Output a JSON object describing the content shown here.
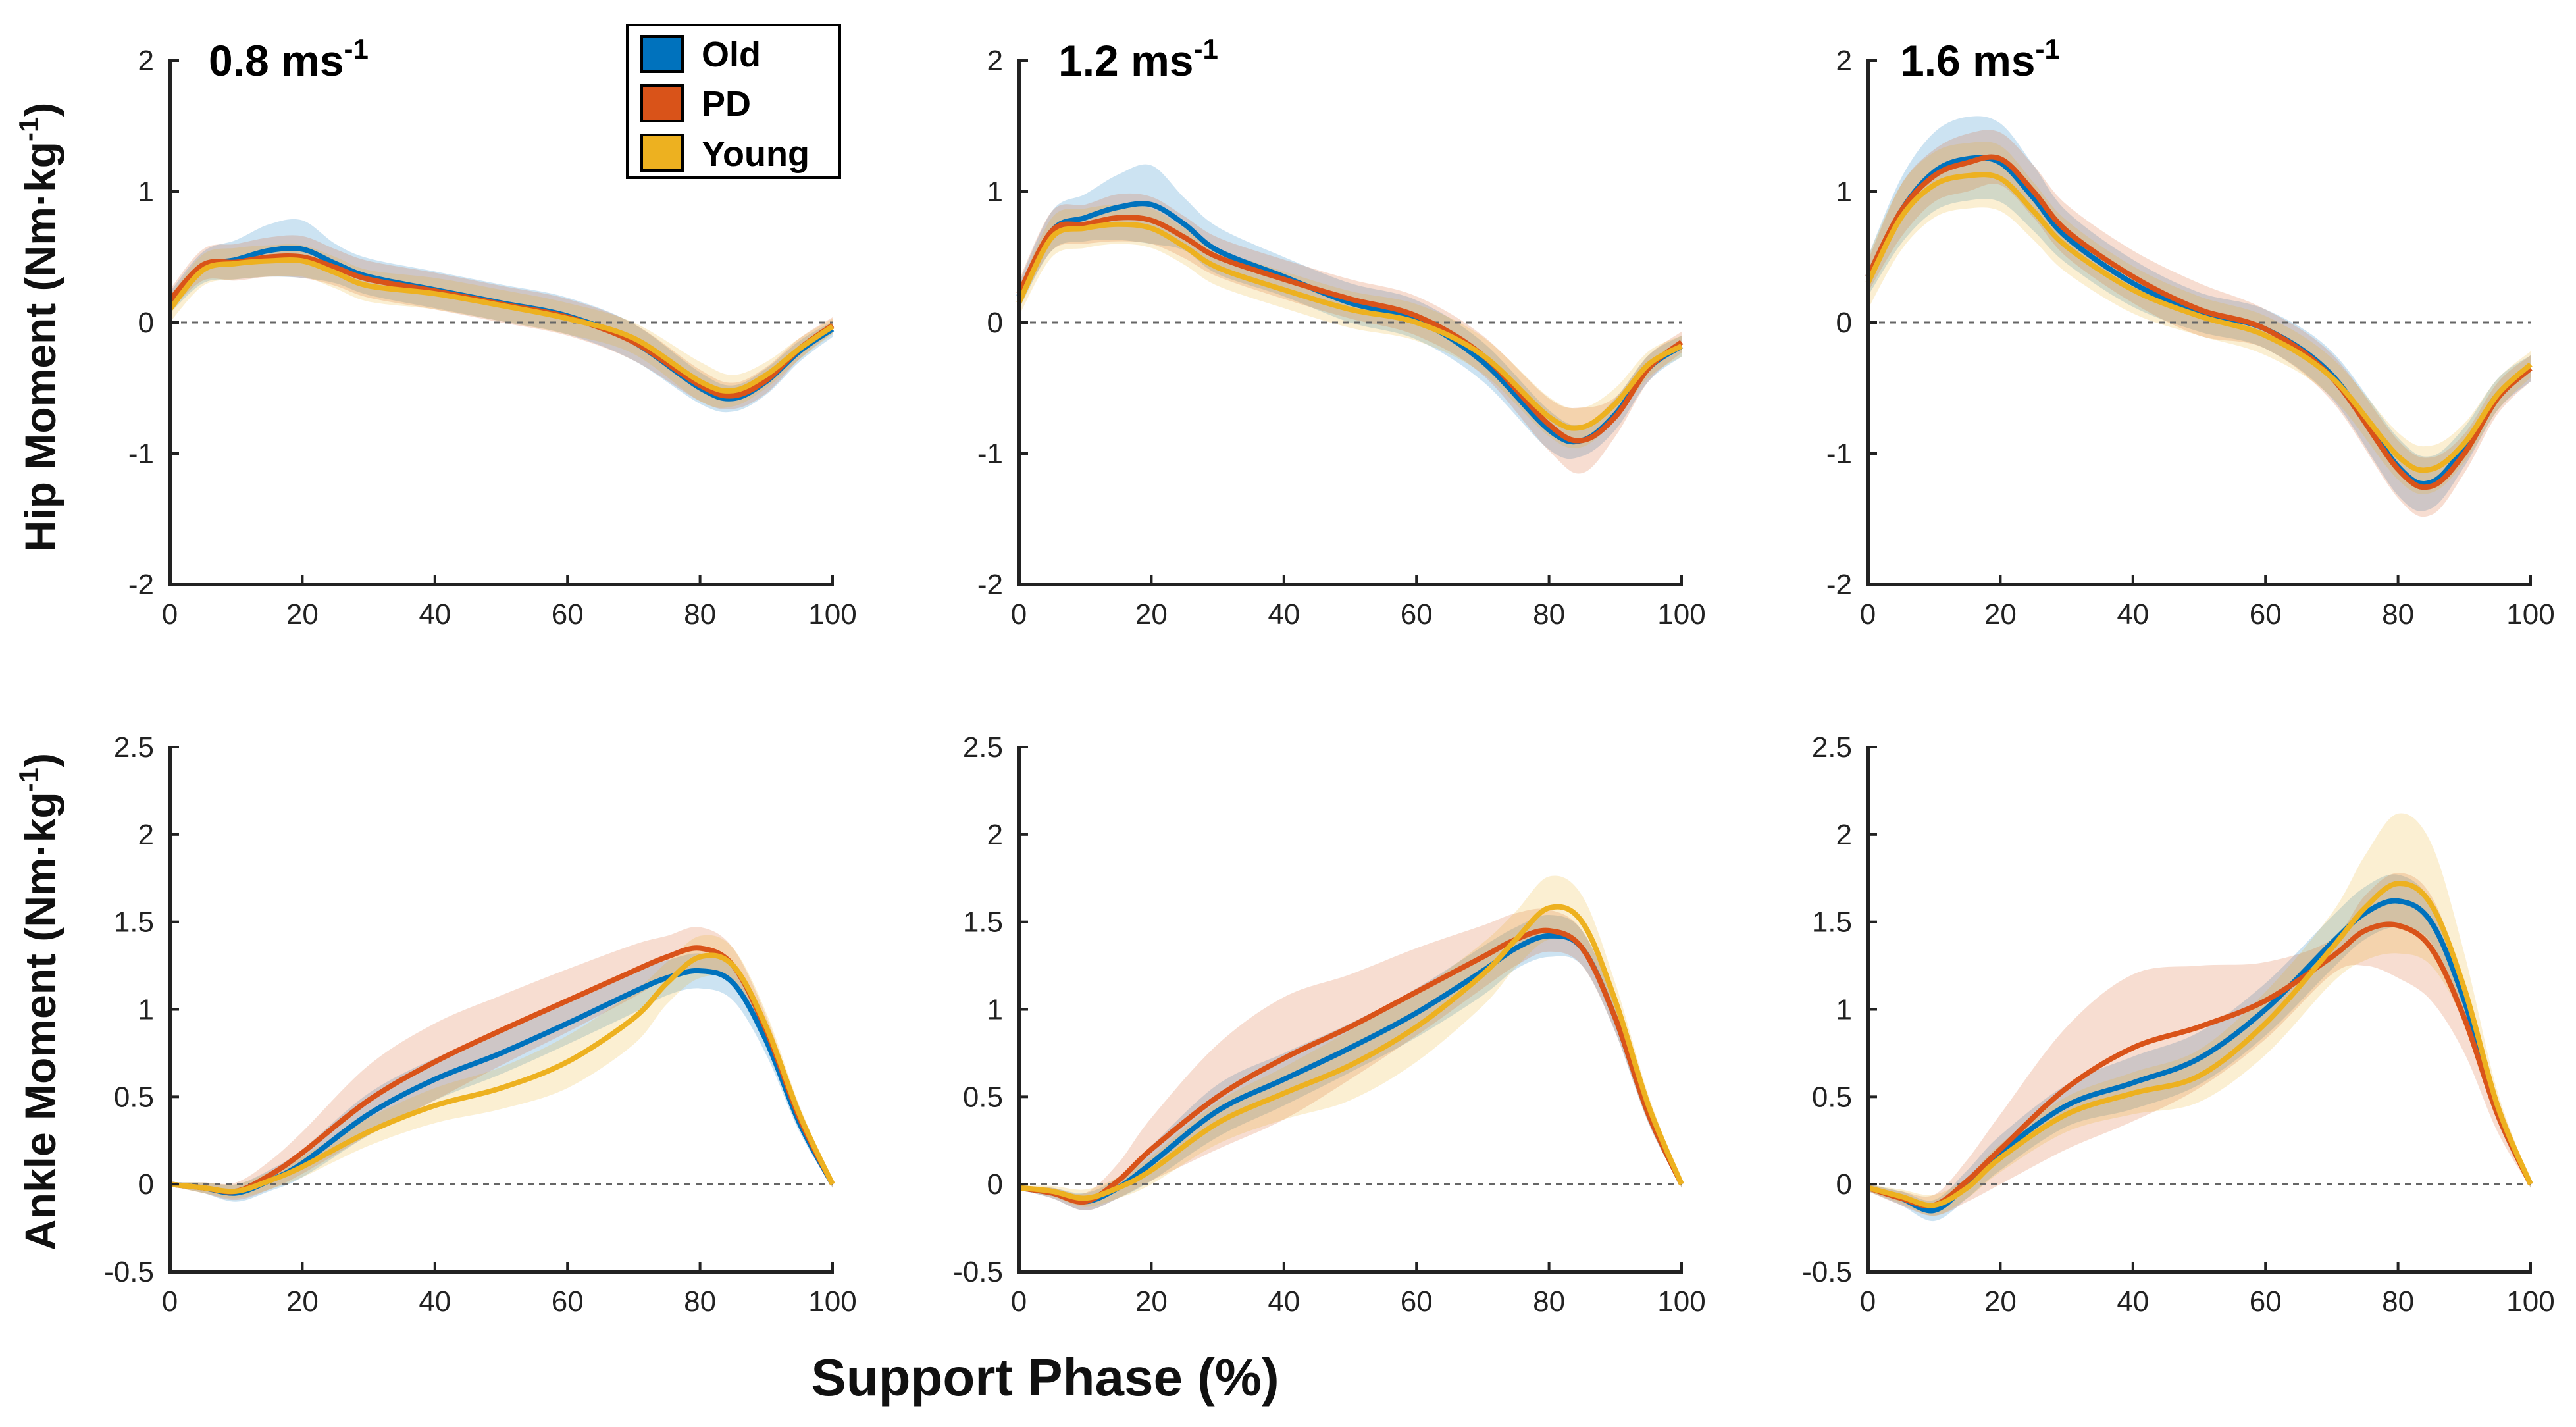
{
  "figure": {
    "xlabel": "Support Phase (%)",
    "speed_unit": "ms",
    "speed_exp": "-1",
    "speeds": [
      "0.8",
      "1.2",
      "1.6"
    ]
  },
  "legend": {
    "position": "top, first panel",
    "entries": [
      {
        "name": "Old",
        "color": "#0072BD"
      },
      {
        "name": "PD",
        "color": "#D95319"
      },
      {
        "name": "Young",
        "color": "#EDB120"
      }
    ]
  },
  "ylabels": {
    "hip": {
      "main": "Hip Moment (Nm·kg",
      "exp": "-1",
      "close": ")"
    },
    "ankle": {
      "main": "Ankle Moment (Nm·kg",
      "exp": "-1",
      "close": ")"
    }
  },
  "chart_data": [
    {
      "type": "line",
      "row": "hip",
      "speed": "0.8 ms-1",
      "x": [
        0,
        5,
        10,
        15,
        20,
        25,
        30,
        40,
        50,
        60,
        70,
        80,
        85,
        90,
        95,
        100
      ],
      "xlim": [
        0,
        100
      ],
      "ylim": [
        -2,
        2
      ],
      "xticks": [
        "0",
        "20",
        "40",
        "60",
        "80",
        "100"
      ],
      "yticks": [
        "-2",
        "-1",
        "0",
        "1",
        "2"
      ],
      "zero_line": true,
      "series": [
        {
          "name": "Old",
          "values": [
            0.15,
            0.42,
            0.48,
            0.55,
            0.56,
            0.45,
            0.35,
            0.25,
            0.15,
            0.05,
            -0.15,
            -0.5,
            -0.58,
            -0.45,
            -0.22,
            -0.05
          ],
          "sd": [
            0.08,
            0.12,
            0.15,
            0.2,
            0.22,
            0.15,
            0.14,
            0.14,
            0.14,
            0.14,
            0.14,
            0.12,
            0.1,
            0.1,
            0.08,
            0.06
          ]
        },
        {
          "name": "PD",
          "values": [
            0.17,
            0.44,
            0.46,
            0.5,
            0.5,
            0.42,
            0.33,
            0.24,
            0.14,
            0.04,
            -0.15,
            -0.48,
            -0.56,
            -0.44,
            -0.2,
            -0.02
          ],
          "sd": [
            0.08,
            0.12,
            0.14,
            0.15,
            0.16,
            0.14,
            0.14,
            0.14,
            0.14,
            0.14,
            0.14,
            0.12,
            0.1,
            0.1,
            0.08,
            0.06
          ]
        },
        {
          "name": "Young",
          "values": [
            0.1,
            0.4,
            0.45,
            0.47,
            0.47,
            0.38,
            0.28,
            0.22,
            0.13,
            0.03,
            -0.12,
            -0.45,
            -0.52,
            -0.4,
            -0.2,
            -0.03
          ],
          "sd": [
            0.1,
            0.12,
            0.12,
            0.12,
            0.12,
            0.12,
            0.12,
            0.12,
            0.12,
            0.12,
            0.12,
            0.15,
            0.12,
            0.1,
            0.08,
            0.06
          ]
        }
      ]
    },
    {
      "type": "line",
      "row": "hip",
      "speed": "1.2 ms-1",
      "x": [
        0,
        5,
        10,
        15,
        20,
        25,
        30,
        40,
        50,
        60,
        70,
        80,
        85,
        90,
        95,
        100
      ],
      "xlim": [
        0,
        100
      ],
      "ylim": [
        -2,
        2
      ],
      "xticks": [
        "0",
        "20",
        "40",
        "60",
        "80",
        "100"
      ],
      "yticks": [
        "-2",
        "-1",
        "0",
        "1",
        "2"
      ],
      "zero_line": true,
      "series": [
        {
          "name": "Old",
          "values": [
            0.2,
            0.7,
            0.8,
            0.88,
            0.9,
            0.75,
            0.55,
            0.35,
            0.15,
            0.02,
            -0.3,
            -0.82,
            -0.9,
            -0.7,
            -0.35,
            -0.18
          ],
          "sd": [
            0.1,
            0.15,
            0.18,
            0.25,
            0.3,
            0.2,
            0.18,
            0.15,
            0.15,
            0.15,
            0.15,
            0.15,
            0.12,
            0.12,
            0.1,
            0.08
          ]
        },
        {
          "name": "PD",
          "values": [
            0.22,
            0.7,
            0.75,
            0.8,
            0.78,
            0.65,
            0.5,
            0.33,
            0.18,
            0.05,
            -0.25,
            -0.78,
            -0.9,
            -0.72,
            -0.35,
            -0.15
          ],
          "sd": [
            0.1,
            0.15,
            0.15,
            0.18,
            0.18,
            0.16,
            0.15,
            0.15,
            0.15,
            0.15,
            0.15,
            0.2,
            0.25,
            0.15,
            0.1,
            0.08
          ]
        },
        {
          "name": "Young",
          "values": [
            0.15,
            0.65,
            0.72,
            0.75,
            0.72,
            0.58,
            0.42,
            0.25,
            0.1,
            0.0,
            -0.25,
            -0.72,
            -0.8,
            -0.62,
            -0.32,
            -0.18
          ],
          "sd": [
            0.1,
            0.15,
            0.15,
            0.15,
            0.15,
            0.14,
            0.14,
            0.14,
            0.14,
            0.14,
            0.14,
            0.15,
            0.15,
            0.12,
            0.1,
            0.08
          ]
        }
      ]
    },
    {
      "type": "line",
      "row": "hip",
      "speed": "1.6 ms-1",
      "x": [
        0,
        5,
        10,
        15,
        20,
        25,
        30,
        40,
        50,
        60,
        70,
        80,
        85,
        90,
        95,
        100
      ],
      "xlim": [
        0,
        100
      ],
      "ylim": [
        -2,
        2
      ],
      "xticks": [
        "0",
        "20",
        "40",
        "60",
        "80",
        "100"
      ],
      "yticks": [
        "-2",
        "-1",
        "0",
        "1",
        "2"
      ],
      "zero_line": true,
      "series": [
        {
          "name": "Old",
          "values": [
            0.35,
            0.85,
            1.15,
            1.25,
            1.22,
            0.95,
            0.65,
            0.3,
            0.08,
            -0.05,
            -0.4,
            -1.1,
            -1.22,
            -0.95,
            -0.55,
            -0.35
          ],
          "sd": [
            0.15,
            0.25,
            0.3,
            0.32,
            0.3,
            0.25,
            0.2,
            0.18,
            0.15,
            0.15,
            0.18,
            0.22,
            0.2,
            0.15,
            0.12,
            0.1
          ]
        },
        {
          "name": "PD",
          "values": [
            0.35,
            0.85,
            1.12,
            1.22,
            1.25,
            1.0,
            0.7,
            0.35,
            0.1,
            -0.05,
            -0.42,
            -1.12,
            -1.25,
            -1.0,
            -0.58,
            -0.35
          ],
          "sd": [
            0.12,
            0.2,
            0.2,
            0.22,
            0.2,
            0.2,
            0.2,
            0.2,
            0.2,
            0.15,
            0.18,
            0.22,
            0.22,
            0.15,
            0.12,
            0.1
          ]
        },
        {
          "name": "Young",
          "values": [
            0.3,
            0.8,
            1.05,
            1.12,
            1.1,
            0.85,
            0.58,
            0.25,
            0.05,
            -0.1,
            -0.42,
            -1.02,
            -1.12,
            -0.92,
            -0.55,
            -0.32
          ],
          "sd": [
            0.2,
            0.25,
            0.25,
            0.25,
            0.25,
            0.22,
            0.2,
            0.18,
            0.15,
            0.15,
            0.15,
            0.18,
            0.18,
            0.15,
            0.12,
            0.1
          ]
        }
      ]
    },
    {
      "type": "line",
      "row": "ankle",
      "speed": "0.8 ms-1",
      "x": [
        0,
        5,
        10,
        15,
        20,
        30,
        40,
        50,
        60,
        70,
        75,
        80,
        85,
        90,
        95,
        100
      ],
      "xlim": [
        0,
        100
      ],
      "ylim": [
        -0.5,
        2.5
      ],
      "xticks": [
        "0",
        "20",
        "40",
        "60",
        "80",
        "100"
      ],
      "yticks": [
        "-0.5",
        "0",
        "0.5",
        "1",
        "1.5",
        "2",
        "2.5"
      ],
      "zero_line": true,
      "series": [
        {
          "name": "Old",
          "values": [
            0.0,
            -0.02,
            -0.05,
            0.02,
            0.12,
            0.4,
            0.6,
            0.75,
            0.92,
            1.1,
            1.18,
            1.22,
            1.15,
            0.82,
            0.35,
            0.0
          ],
          "sd": [
            0.01,
            0.03,
            0.05,
            0.06,
            0.08,
            0.12,
            0.12,
            0.12,
            0.12,
            0.12,
            0.1,
            0.1,
            0.1,
            0.08,
            0.05,
            0.02
          ]
        },
        {
          "name": "PD",
          "values": [
            0.0,
            -0.02,
            -0.04,
            0.05,
            0.18,
            0.48,
            0.7,
            0.88,
            1.05,
            1.22,
            1.3,
            1.35,
            1.25,
            0.88,
            0.38,
            0.0
          ],
          "sd": [
            0.01,
            0.03,
            0.05,
            0.08,
            0.12,
            0.2,
            0.22,
            0.2,
            0.18,
            0.15,
            0.12,
            0.12,
            0.1,
            0.08,
            0.05,
            0.02
          ]
        },
        {
          "name": "Young",
          "values": [
            0.0,
            -0.02,
            -0.04,
            0.02,
            0.1,
            0.3,
            0.45,
            0.55,
            0.7,
            0.95,
            1.15,
            1.3,
            1.25,
            0.9,
            0.4,
            0.0
          ],
          "sd": [
            0.01,
            0.03,
            0.04,
            0.05,
            0.06,
            0.08,
            0.1,
            0.12,
            0.15,
            0.15,
            0.12,
            0.12,
            0.1,
            0.08,
            0.05,
            0.02
          ]
        }
      ]
    },
    {
      "type": "line",
      "row": "ankle",
      "speed": "1.2 ms-1",
      "x": [
        0,
        5,
        10,
        15,
        20,
        30,
        40,
        50,
        60,
        70,
        75,
        80,
        85,
        90,
        95,
        100
      ],
      "xlim": [
        0,
        100
      ],
      "ylim": [
        -0.5,
        2.5
      ],
      "xticks": [
        "0",
        "20",
        "40",
        "60",
        "80",
        "100"
      ],
      "yticks": [
        "-0.5",
        "0",
        "0.5",
        "1",
        "1.5",
        "2",
        "2.5"
      ],
      "zero_line": true,
      "series": [
        {
          "name": "Old",
          "values": [
            -0.02,
            -0.05,
            -0.1,
            -0.02,
            0.12,
            0.42,
            0.6,
            0.78,
            0.98,
            1.22,
            1.35,
            1.42,
            1.35,
            0.95,
            0.4,
            0.0
          ],
          "sd": [
            0.01,
            0.03,
            0.05,
            0.06,
            0.1,
            0.15,
            0.15,
            0.14,
            0.14,
            0.14,
            0.12,
            0.12,
            0.1,
            0.08,
            0.05,
            0.02
          ]
        },
        {
          "name": "PD",
          "values": [
            -0.02,
            -0.05,
            -0.1,
            0.02,
            0.2,
            0.5,
            0.72,
            0.9,
            1.1,
            1.3,
            1.4,
            1.45,
            1.35,
            0.95,
            0.4,
            0.0
          ],
          "sd": [
            0.01,
            0.03,
            0.05,
            0.1,
            0.18,
            0.3,
            0.35,
            0.3,
            0.25,
            0.18,
            0.15,
            0.12,
            0.1,
            0.08,
            0.05,
            0.02
          ]
        },
        {
          "name": "Young",
          "values": [
            -0.02,
            -0.04,
            -0.08,
            -0.02,
            0.08,
            0.35,
            0.52,
            0.68,
            0.9,
            1.2,
            1.4,
            1.58,
            1.5,
            1.05,
            0.45,
            0.0
          ],
          "sd": [
            0.01,
            0.03,
            0.05,
            0.06,
            0.08,
            0.12,
            0.15,
            0.2,
            0.2,
            0.18,
            0.16,
            0.18,
            0.15,
            0.1,
            0.06,
            0.02
          ]
        }
      ]
    },
    {
      "type": "line",
      "row": "ankle",
      "speed": "1.6 ms-1",
      "x": [
        0,
        5,
        10,
        15,
        20,
        30,
        40,
        50,
        60,
        70,
        75,
        80,
        85,
        90,
        95,
        100
      ],
      "xlim": [
        0,
        100
      ],
      "ylim": [
        -0.5,
        2.5
      ],
      "xticks": [
        "0",
        "20",
        "40",
        "60",
        "80",
        "100"
      ],
      "yticks": [
        "-0.5",
        "0",
        "0.5",
        "1",
        "1.5",
        "2",
        "2.5"
      ],
      "zero_line": true,
      "series": [
        {
          "name": "Old",
          "values": [
            -0.02,
            -0.08,
            -0.15,
            0.0,
            0.18,
            0.45,
            0.58,
            0.72,
            1.0,
            1.38,
            1.55,
            1.62,
            1.5,
            1.05,
            0.42,
            0.0
          ],
          "sd": [
            0.02,
            0.04,
            0.06,
            0.08,
            0.1,
            0.12,
            0.15,
            0.15,
            0.15,
            0.15,
            0.15,
            0.15,
            0.12,
            0.1,
            0.06,
            0.02
          ]
        },
        {
          "name": "PD",
          "values": [
            -0.02,
            -0.08,
            -0.12,
            0.02,
            0.2,
            0.55,
            0.78,
            0.9,
            1.05,
            1.3,
            1.45,
            1.48,
            1.35,
            0.95,
            0.4,
            0.0
          ],
          "sd": [
            0.02,
            0.04,
            0.06,
            0.12,
            0.2,
            0.35,
            0.42,
            0.35,
            0.22,
            0.1,
            0.2,
            0.3,
            0.3,
            0.2,
            0.1,
            0.02
          ]
        },
        {
          "name": "Young",
          "values": [
            -0.02,
            -0.07,
            -0.12,
            -0.02,
            0.15,
            0.4,
            0.52,
            0.62,
            0.92,
            1.35,
            1.58,
            1.72,
            1.6,
            1.12,
            0.45,
            0.0
          ],
          "sd": [
            0.02,
            0.04,
            0.06,
            0.06,
            0.08,
            0.1,
            0.12,
            0.15,
            0.18,
            0.2,
            0.3,
            0.4,
            0.35,
            0.2,
            0.08,
            0.02
          ]
        }
      ]
    }
  ]
}
